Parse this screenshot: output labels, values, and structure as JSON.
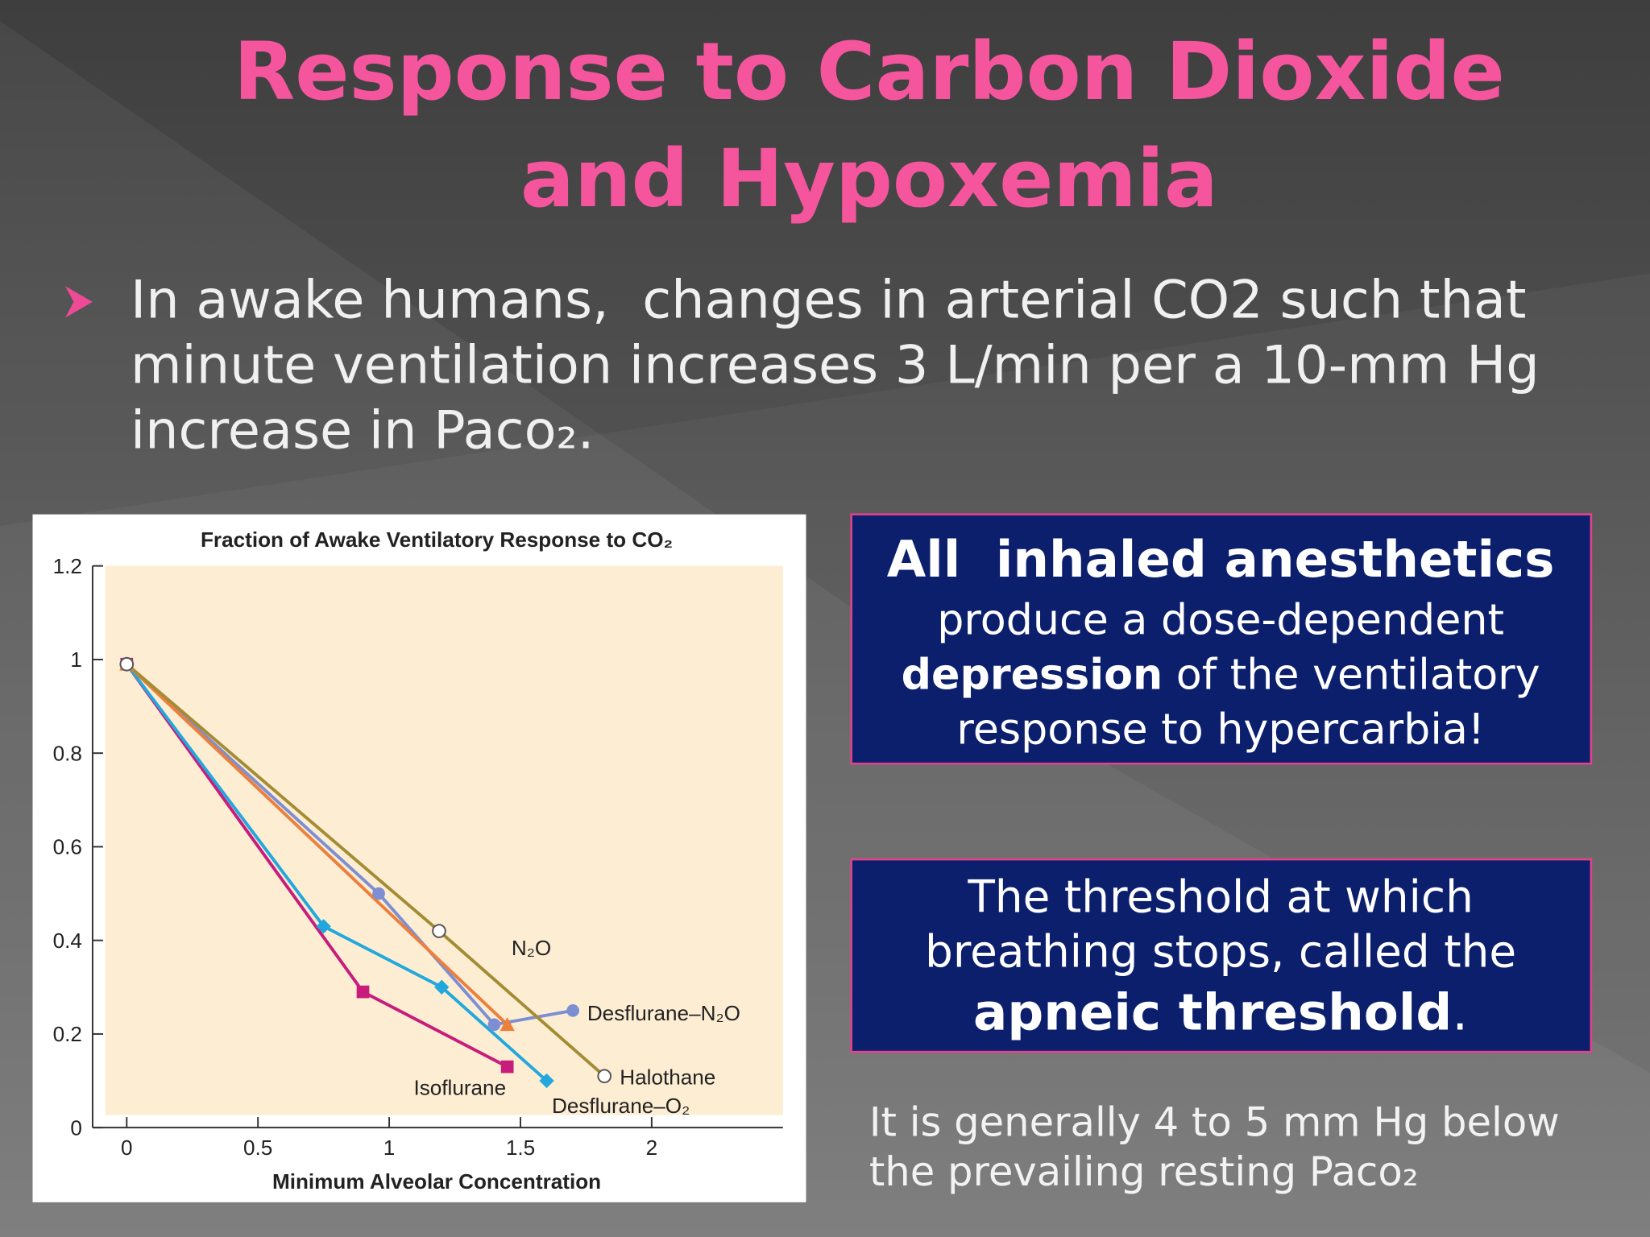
{
  "title": {
    "line_1": "Response to Carbon Dioxide",
    "line_2": "and Hypoxemia"
  },
  "bullet": {
    "line_1": "In awake humans,  changes in arterial CO2 such that",
    "line_2": "minute ventilation increases 3 L/min per a 10-mm Hg",
    "line_3": "increase in Paco₂."
  },
  "box_1": {
    "heading": "All  inhaled anesthetics",
    "line_1": "produce a dose-dependent",
    "emphasis": "depression",
    "line_2": " of the ventilatory",
    "line_3": "response to hypercarbia!"
  },
  "box_2": {
    "line_1": "The threshold at which",
    "line_2": "breathing stops, called the",
    "emphasis": "apneic threshold",
    "end": "."
  },
  "note": {
    "line_1": "It is generally 4 to 5 mm Hg below",
    "line_2": "the prevailing resting Paco₂"
  },
  "chart_data": {
    "type": "line",
    "title": "Fraction of Awake Ventilatory Response to CO₂",
    "x_label": "Minimum Alveolar Concentration",
    "xlim": [
      -0.13,
      2.5
    ],
    "xticks": [
      0,
      0.5,
      1,
      1.5,
      2
    ],
    "ylim": [
      0,
      1.2
    ],
    "yticks": [
      0,
      0.2,
      0.4,
      0.6,
      0.8,
      1,
      1.2
    ],
    "series": [
      {
        "name": "Isoflurane",
        "color": "#c81c7c",
        "marker": "square",
        "x": [
          0,
          0.9,
          1.45
        ],
        "values": [
          0.99,
          0.29,
          0.13
        ]
      },
      {
        "name": "Desflurane–O₂",
        "color": "#22a8dc",
        "marker": "diamond",
        "x": [
          0,
          0.75,
          1.2,
          1.6
        ],
        "values": [
          0.99,
          0.43,
          0.3,
          0.1
        ]
      },
      {
        "name": "Desflurane–N₂O",
        "color": "#7d8fd2",
        "marker": "circle",
        "x": [
          0,
          0.96,
          1.4,
          1.7
        ],
        "values": [
          0.99,
          0.5,
          0.22,
          0.25
        ]
      },
      {
        "name": "N₂O",
        "color": "#ec7f3c",
        "marker": "triangle",
        "x": [
          0,
          1.45
        ],
        "values": [
          0.99,
          0.22
        ]
      },
      {
        "name": "Halothane",
        "color": "#a48c34",
        "marker": "open-circle",
        "x": [
          0,
          1.19,
          1.82
        ],
        "values": [
          0.99,
          0.42,
          0.11
        ]
      }
    ]
  }
}
